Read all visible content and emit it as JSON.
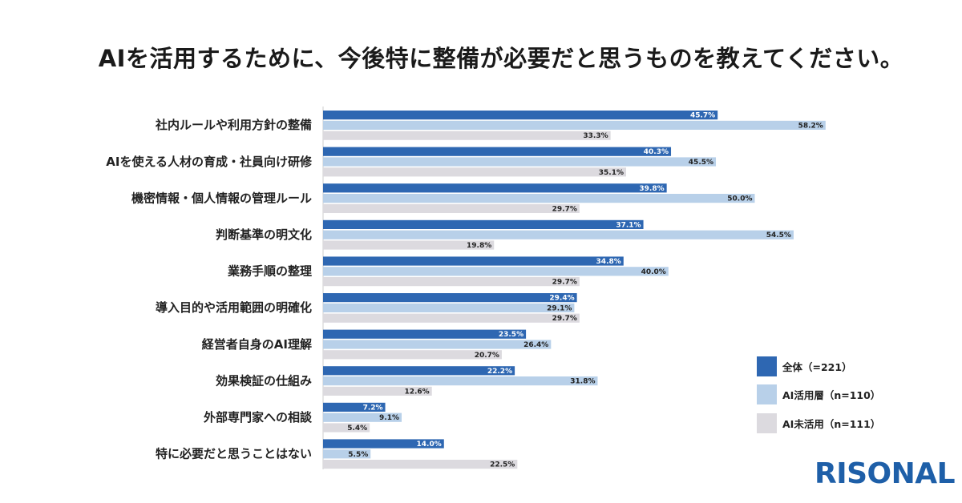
{
  "chart_data": {
    "type": "bar",
    "orientation": "horizontal",
    "title": "AIを活用するために、今後特に整備が必要だと思うものを教えてください。",
    "categories": [
      "社内ルールや利用方針の整備",
      "AIを使える人材の育成・社員向け研修",
      "機密情報・個人情報の管理ルール",
      "判断基準の明文化",
      "業務手順の整理",
      "導入目的や活用範囲の明確化",
      "経営者自身のAI理解",
      "効果検証の仕組み",
      "外部専門家への相談",
      "特に必要だと思うことはない"
    ],
    "series": [
      {
        "name": "全体（=221）",
        "color": "#2e67b2",
        "label_color": "#ffffff",
        "values": [
          45.7,
          40.3,
          39.8,
          37.1,
          34.8,
          29.4,
          23.5,
          22.2,
          7.2,
          14.0
        ],
        "labels": [
          "45.7%",
          "40.3%",
          "39.8%",
          "37.1%",
          "34.8%",
          "29.4%",
          "23.5%",
          "22.2%",
          "7.2%",
          "14.0%"
        ]
      },
      {
        "name": "AI活用層（n=110）",
        "color": "#b8d0e9",
        "label_color": "#222222",
        "values": [
          58.2,
          45.5,
          50.0,
          54.5,
          40.0,
          29.1,
          26.4,
          31.8,
          9.1,
          5.5
        ],
        "labels": [
          "58.2%",
          "45.5%",
          "50.0%",
          "54.5%",
          "40.0%",
          "29.1%",
          "26.4%",
          "31.8%",
          "9.1%",
          "5.5%"
        ]
      },
      {
        "name": "AI未活用（n=111）",
        "color": "#dcdadf",
        "label_color": "#222222",
        "values": [
          33.3,
          35.1,
          29.7,
          19.8,
          29.7,
          29.7,
          20.7,
          12.6,
          5.4,
          22.5
        ],
        "labels": [
          "33.3%",
          "35.1%",
          "29.7%",
          "19.8%",
          "29.7%",
          "29.7%",
          "20.7%",
          "12.6%",
          "5.4%",
          "22.5%"
        ]
      }
    ],
    "xlim": [
      0,
      70
    ],
    "grid": false,
    "legend_position": "bottom-right"
  },
  "logo_text": "RISONAL"
}
